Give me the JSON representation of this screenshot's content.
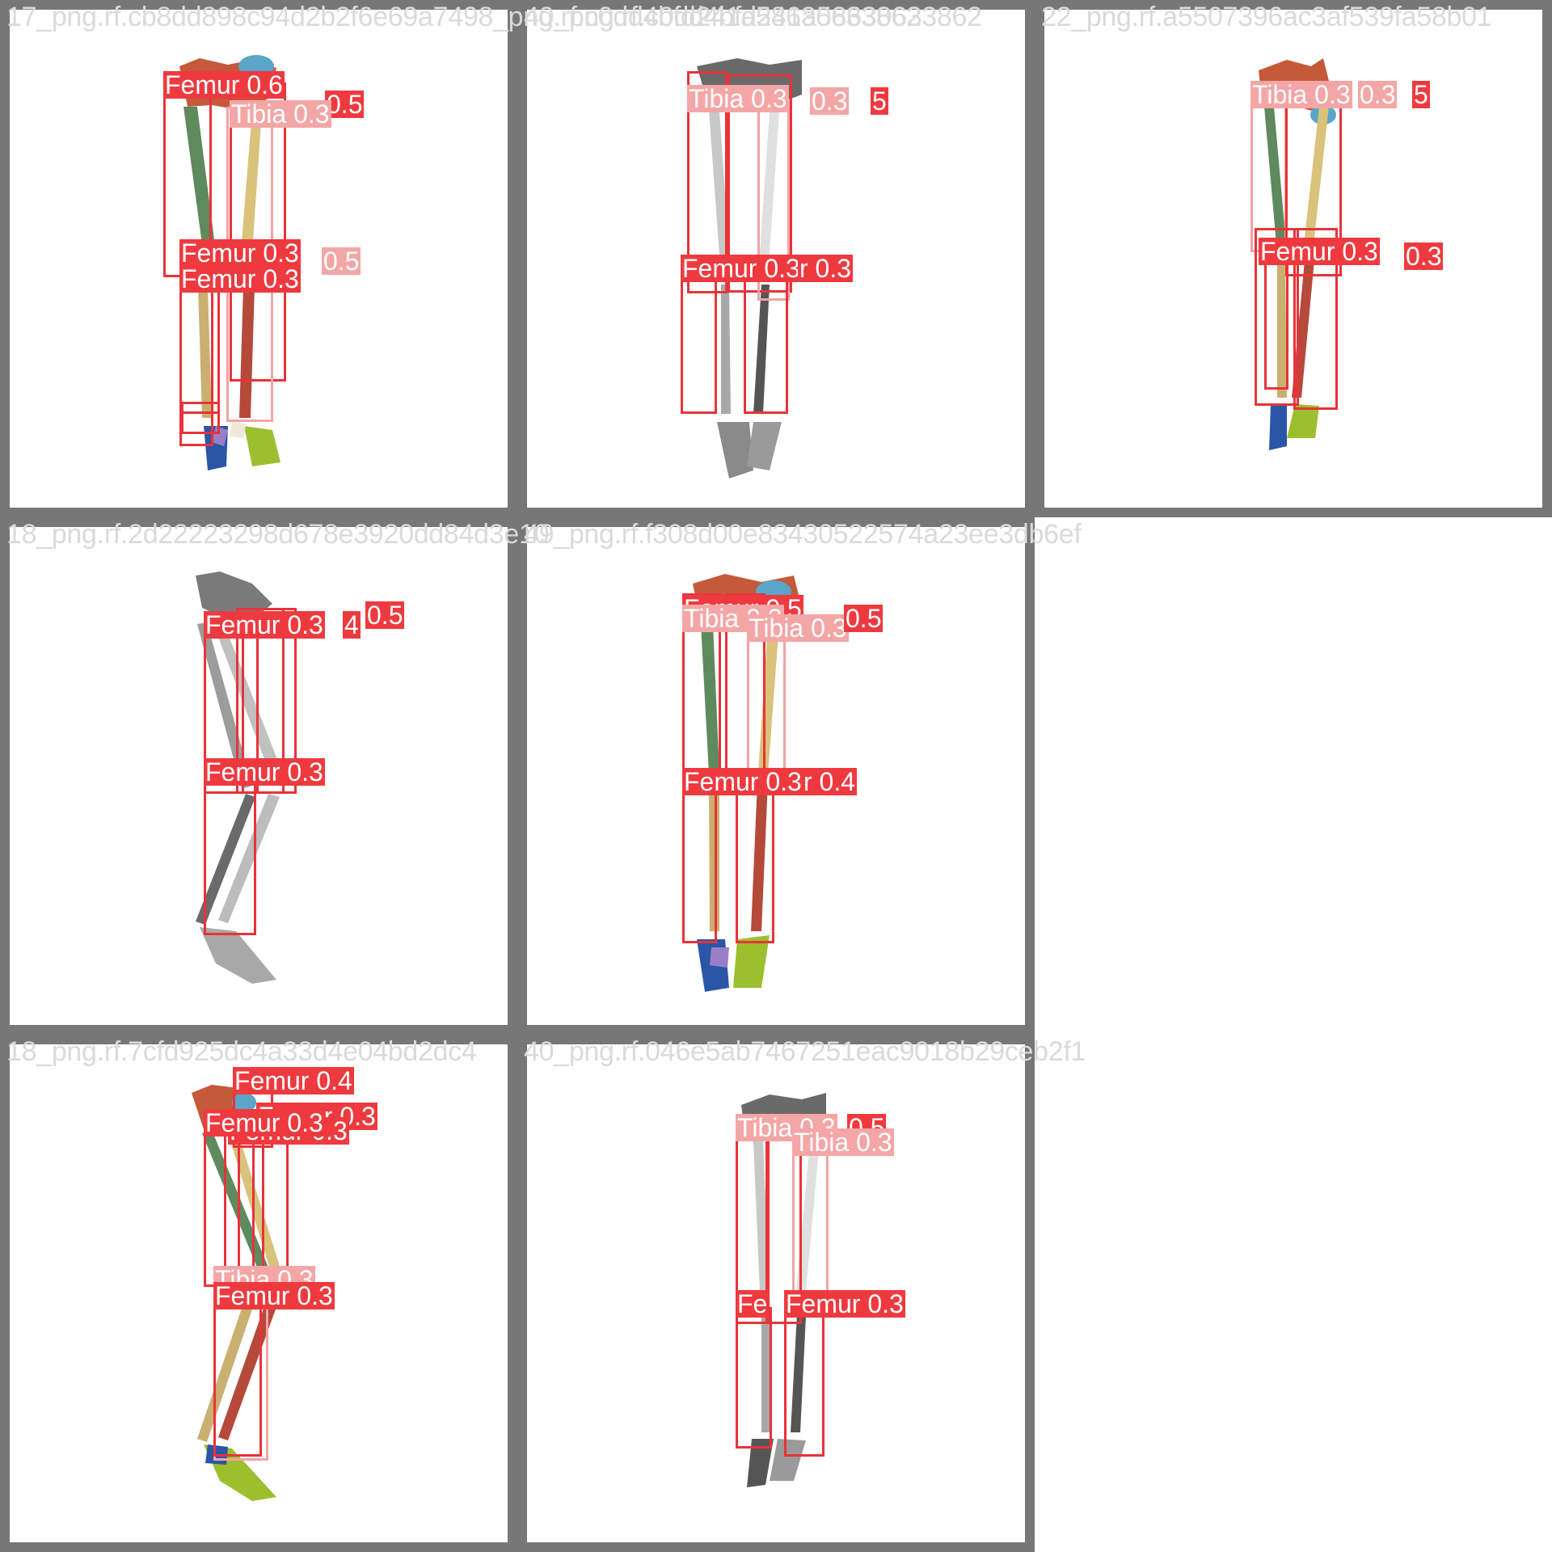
{
  "grid": {
    "tiles": [
      {
        "title": "17_png.rf.cb8dd898c94d2b2f6e69a7498_png.rf.c0dd4bfd241a58630633862",
        "style": "color",
        "detections": [
          {
            "label": "Femur 0.6",
            "kind": "femur"
          },
          {
            "label": "0.5",
            "kind": "femur"
          },
          {
            "label": "Tibia 0.3",
            "kind": "tibia"
          },
          {
            "label": "Femur 0.3",
            "kind": "femur"
          },
          {
            "label": "0.5",
            "kind": "tibia"
          },
          {
            "label": "Femur 0.3",
            "kind": "femur"
          }
        ]
      },
      {
        "title": "40_png.rf.c0dd4bfd241a58630633862",
        "style": "gray",
        "detections": [
          {
            "label": "Tibia 0.3",
            "kind": "tibia"
          },
          {
            "label": "0.3",
            "kind": "tibia"
          },
          {
            "label": "5",
            "kind": "femur"
          },
          {
            "label": "Femur 0.3",
            "kind": "femur"
          },
          {
            "label": "r 0.3",
            "kind": "femur"
          }
        ]
      },
      {
        "title": "22_png.rf.a5507396ac3af539fa58b01",
        "style": "color",
        "detections": [
          {
            "label": "Tibia 0.3",
            "kind": "tibia"
          },
          {
            "label": "0.3",
            "kind": "tibia"
          },
          {
            "label": "5",
            "kind": "femur"
          },
          {
            "label": "Femur 0.3",
            "kind": "femur"
          },
          {
            "label": "0.3",
            "kind": "femur"
          }
        ]
      },
      {
        "title": "18_png.rf.2d22223298d678e3920dd84d3e10",
        "style": "gray",
        "detections": [
          {
            "label": "Femur 0.3",
            "kind": "femur"
          },
          {
            "label": "4",
            "kind": "femur"
          },
          {
            "label": "0.5",
            "kind": "femur"
          },
          {
            "label": "Femur 0.3",
            "kind": "femur"
          }
        ]
      },
      {
        "title": "49_png.rf.f308d00e83430522574a23ee3db6ef",
        "style": "color",
        "detections": [
          {
            "label": "Femur 0.5",
            "kind": "femur"
          },
          {
            "label": "Tibia 0.3",
            "kind": "tibia"
          },
          {
            "label": "Tibia 0.3",
            "kind": "tibia"
          },
          {
            "label": "0.5",
            "kind": "femur"
          },
          {
            "label": "Femur 0.3",
            "kind": "femur"
          },
          {
            "label": "r 0.4",
            "kind": "femur"
          }
        ]
      },
      {
        "title": "18_png.rf.7cfd925dc4a33d4e04bd2dc4",
        "style": "color",
        "detections": [
          {
            "label": "Femur 0.4",
            "kind": "femur"
          },
          {
            "label": "Femur 0.3",
            "kind": "femur"
          },
          {
            "label": "Femur 0.3",
            "kind": "femur"
          },
          {
            "label": "Femur 0.3",
            "kind": "femur"
          },
          {
            "label": "Tibia 0.3",
            "kind": "tibia"
          },
          {
            "label": "Femur 0.3",
            "kind": "femur"
          }
        ]
      },
      {
        "title": "40_png.rf.046e5ab7467251eac9018b29ceb2f1",
        "style": "gray",
        "detections": [
          {
            "label": "Tibia 0.3",
            "kind": "tibia"
          },
          {
            "label": "0.5",
            "kind": "femur"
          },
          {
            "label": "Tibia 0.3",
            "kind": "tibia"
          },
          {
            "label": "Fe",
            "kind": "femur"
          },
          {
            "label": "Femur 0.3",
            "kind": "femur"
          }
        ]
      }
    ]
  },
  "colors": {
    "frame": "#777777",
    "box": "#e8333a",
    "box_light": "#f2a3a5",
    "label_bg": "#ee3a3f",
    "label_bg_light": "#f4a6a6",
    "title_text": "#dadada"
  }
}
